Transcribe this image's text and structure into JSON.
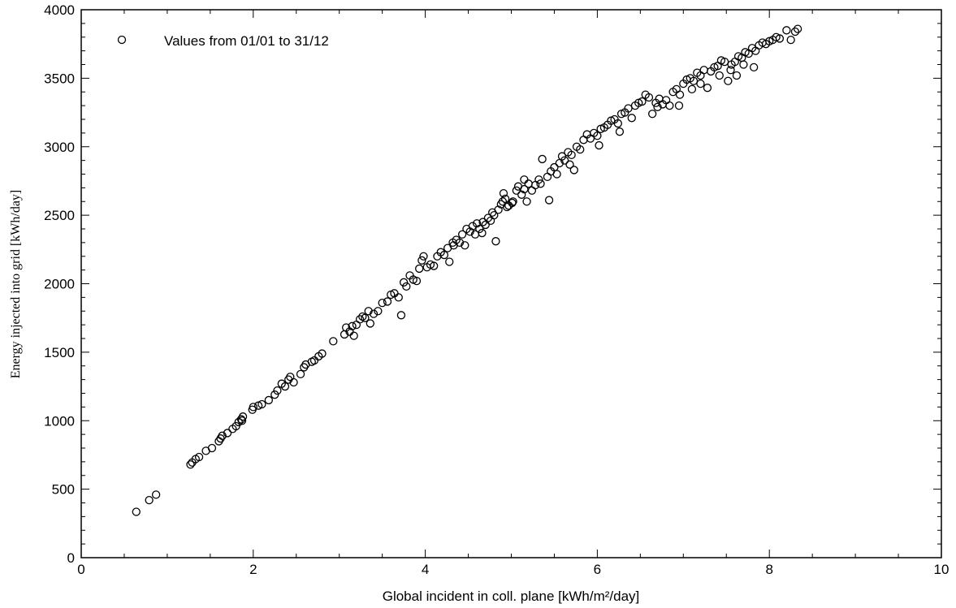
{
  "chart_data": {
    "type": "scatter",
    "xlabel": "Global incident in coll. plane [kWh/m²/day]",
    "ylabel": "Energy injected into grid [kWh/day]",
    "xlim": [
      0,
      10
    ],
    "ylim": [
      0,
      4000
    ],
    "x_ticks": [
      0,
      2,
      4,
      6,
      8,
      10
    ],
    "y_ticks": [
      0,
      500,
      1000,
      1500,
      2000,
      2500,
      3000,
      3500,
      4000
    ],
    "grid": false,
    "legend": {
      "position": "top-left",
      "entries": [
        "Values from 01/01 to 31/12"
      ]
    },
    "series": [
      {
        "name": "Values from 01/01 to 31/12",
        "marker": "open-circle",
        "color": "#000000",
        "points": [
          [
            0.64,
            335
          ],
          [
            0.79,
            420
          ],
          [
            0.87,
            460
          ],
          [
            1.27,
            680
          ],
          [
            1.29,
            695
          ],
          [
            1.33,
            720
          ],
          [
            1.37,
            735
          ],
          [
            1.45,
            780
          ],
          [
            1.52,
            800
          ],
          [
            1.6,
            850
          ],
          [
            1.62,
            870
          ],
          [
            1.64,
            890
          ],
          [
            1.7,
            910
          ],
          [
            1.76,
            940
          ],
          [
            1.8,
            960
          ],
          [
            1.83,
            990
          ],
          [
            1.86,
            1010
          ],
          [
            1.88,
            1030
          ],
          [
            1.87,
            1000
          ],
          [
            1.99,
            1080
          ],
          [
            2.0,
            1100
          ],
          [
            2.06,
            1110
          ],
          [
            2.1,
            1120
          ],
          [
            2.18,
            1150
          ],
          [
            2.25,
            1190
          ],
          [
            2.28,
            1220
          ],
          [
            2.33,
            1270
          ],
          [
            2.37,
            1250
          ],
          [
            2.41,
            1300
          ],
          [
            2.43,
            1320
          ],
          [
            2.47,
            1280
          ],
          [
            2.55,
            1340
          ],
          [
            2.59,
            1390
          ],
          [
            2.61,
            1410
          ],
          [
            2.68,
            1430
          ],
          [
            2.71,
            1440
          ],
          [
            2.76,
            1470
          ],
          [
            2.8,
            1490
          ],
          [
            2.93,
            1580
          ],
          [
            3.06,
            1630
          ],
          [
            3.08,
            1680
          ],
          [
            3.12,
            1650
          ],
          [
            3.15,
            1690
          ],
          [
            3.17,
            1620
          ],
          [
            3.2,
            1700
          ],
          [
            3.24,
            1740
          ],
          [
            3.27,
            1760
          ],
          [
            3.3,
            1750
          ],
          [
            3.34,
            1800
          ],
          [
            3.36,
            1710
          ],
          [
            3.4,
            1780
          ],
          [
            3.45,
            1800
          ],
          [
            3.5,
            1860
          ],
          [
            3.56,
            1870
          ],
          [
            3.6,
            1920
          ],
          [
            3.64,
            1930
          ],
          [
            3.69,
            1900
          ],
          [
            3.72,
            1770
          ],
          [
            3.75,
            2010
          ],
          [
            3.78,
            1980
          ],
          [
            3.82,
            2060
          ],
          [
            3.86,
            2030
          ],
          [
            3.9,
            2020
          ],
          [
            3.93,
            2110
          ],
          [
            3.96,
            2170
          ],
          [
            3.98,
            2200
          ],
          [
            4.02,
            2120
          ],
          [
            4.06,
            2140
          ],
          [
            4.1,
            2130
          ],
          [
            4.14,
            2200
          ],
          [
            4.18,
            2230
          ],
          [
            4.22,
            2210
          ],
          [
            4.26,
            2260
          ],
          [
            4.28,
            2160
          ],
          [
            4.33,
            2280
          ],
          [
            4.36,
            2320
          ],
          [
            4.4,
            2300
          ],
          [
            4.43,
            2360
          ],
          [
            4.46,
            2280
          ],
          [
            4.48,
            2400
          ],
          [
            4.52,
            2380
          ],
          [
            4.55,
            2420
          ],
          [
            4.58,
            2360
          ],
          [
            4.6,
            2440
          ],
          [
            4.63,
            2400
          ],
          [
            4.66,
            2370
          ],
          [
            4.7,
            2430
          ],
          [
            4.73,
            2480
          ],
          [
            4.76,
            2460
          ],
          [
            4.78,
            2520
          ],
          [
            4.8,
            2500
          ],
          [
            4.82,
            2310
          ],
          [
            4.85,
            2540
          ],
          [
            4.88,
            2580
          ],
          [
            4.9,
            2600
          ],
          [
            4.93,
            2620
          ],
          [
            4.95,
            2560
          ],
          [
            4.97,
            2570
          ],
          [
            5.02,
            2600
          ],
          [
            5.06,
            2680
          ],
          [
            5.08,
            2710
          ],
          [
            5.12,
            2650
          ],
          [
            5.15,
            2690
          ],
          [
            5.18,
            2600
          ],
          [
            5.2,
            2730
          ],
          [
            5.24,
            2680
          ],
          [
            5.28,
            2720
          ],
          [
            5.32,
            2760
          ],
          [
            5.36,
            2910
          ],
          [
            5.42,
            2780
          ],
          [
            5.44,
            2610
          ],
          [
            5.46,
            2820
          ],
          [
            5.5,
            2850
          ],
          [
            5.53,
            2800
          ],
          [
            5.56,
            2880
          ],
          [
            5.59,
            2930
          ],
          [
            5.62,
            2900
          ],
          [
            5.66,
            2960
          ],
          [
            5.7,
            2940
          ],
          [
            5.73,
            2830
          ],
          [
            5.76,
            3000
          ],
          [
            5.8,
            2980
          ],
          [
            5.84,
            3050
          ],
          [
            5.88,
            3090
          ],
          [
            5.92,
            3060
          ],
          [
            5.96,
            3100
          ],
          [
            6.0,
            3080
          ],
          [
            6.04,
            3130
          ],
          [
            6.08,
            3140
          ],
          [
            6.12,
            3160
          ],
          [
            6.16,
            3190
          ],
          [
            6.2,
            3200
          ],
          [
            6.24,
            3170
          ],
          [
            6.28,
            3240
          ],
          [
            6.32,
            3250
          ],
          [
            6.36,
            3280
          ],
          [
            6.4,
            3210
          ],
          [
            6.44,
            3300
          ],
          [
            6.48,
            3320
          ],
          [
            6.52,
            3330
          ],
          [
            6.56,
            3380
          ],
          [
            6.6,
            3360
          ],
          [
            6.64,
            3240
          ],
          [
            6.68,
            3320
          ],
          [
            6.72,
            3350
          ],
          [
            6.76,
            3310
          ],
          [
            6.8,
            3340
          ],
          [
            6.84,
            3300
          ],
          [
            6.88,
            3400
          ],
          [
            6.92,
            3420
          ],
          [
            6.96,
            3380
          ],
          [
            7.0,
            3460
          ],
          [
            7.04,
            3490
          ],
          [
            7.08,
            3500
          ],
          [
            7.12,
            3480
          ],
          [
            7.16,
            3540
          ],
          [
            7.2,
            3520
          ],
          [
            7.24,
            3560
          ],
          [
            7.28,
            3430
          ],
          [
            7.32,
            3550
          ],
          [
            7.36,
            3580
          ],
          [
            7.4,
            3590
          ],
          [
            7.44,
            3630
          ],
          [
            7.48,
            3620
          ],
          [
            7.52,
            3480
          ],
          [
            7.56,
            3600
          ],
          [
            7.6,
            3620
          ],
          [
            7.64,
            3660
          ],
          [
            7.68,
            3650
          ],
          [
            7.72,
            3690
          ],
          [
            7.76,
            3680
          ],
          [
            7.8,
            3720
          ],
          [
            7.84,
            3700
          ],
          [
            7.88,
            3740
          ],
          [
            7.92,
            3760
          ],
          [
            7.96,
            3750
          ],
          [
            8.0,
            3770
          ],
          [
            8.04,
            3780
          ],
          [
            8.08,
            3800
          ],
          [
            8.12,
            3790
          ],
          [
            8.2,
            3850
          ],
          [
            8.25,
            3780
          ],
          [
            8.3,
            3840
          ],
          [
            8.33,
            3860
          ],
          [
            7.42,
            3520
          ],
          [
            7.55,
            3560
          ],
          [
            7.62,
            3520
          ],
          [
            7.7,
            3600
          ],
          [
            7.82,
            3580
          ],
          [
            6.26,
            3110
          ],
          [
            6.02,
            3010
          ],
          [
            5.68,
            2870
          ],
          [
            5.34,
            2730
          ],
          [
            5.01,
            2590
          ],
          [
            4.67,
            2450
          ],
          [
            4.32,
            2300
          ],
          [
            5.15,
            2760
          ],
          [
            4.91,
            2660
          ],
          [
            6.7,
            3290
          ],
          [
            6.95,
            3300
          ],
          [
            7.1,
            3420
          ],
          [
            7.2,
            3460
          ]
        ]
      }
    ]
  }
}
